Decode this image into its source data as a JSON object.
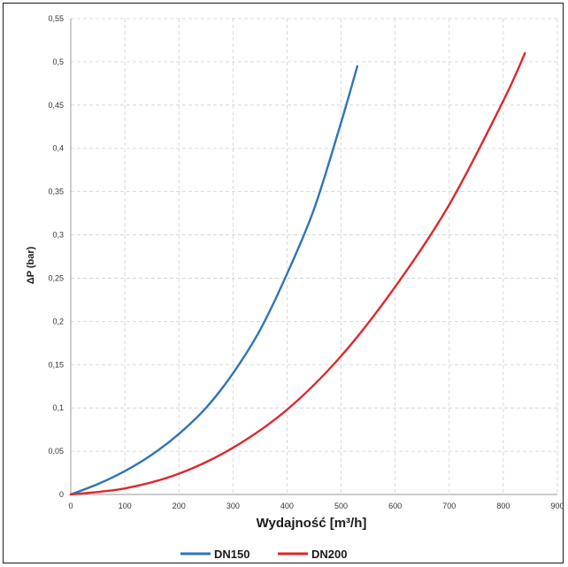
{
  "chart_data": {
    "type": "line",
    "title": "",
    "xlabel": "Wydajność [m³/h]",
    "ylabel": "ΔP (bar)",
    "xlim": [
      0,
      900
    ],
    "ylim": [
      0,
      0.55
    ],
    "x_ticks": [
      "0",
      "100",
      "200",
      "300",
      "400",
      "500",
      "600",
      "700",
      "800",
      "900"
    ],
    "y_ticks": [
      "0",
      "0,05",
      "0,1",
      "0,15",
      "0,2",
      "0,25",
      "0,3",
      "0,35",
      "0,4",
      "0,45",
      "0,5",
      "0,55"
    ],
    "grid": true,
    "legend_position": "bottom",
    "series": [
      {
        "name": "DN150",
        "color": "#2e75b6",
        "x": [
          0,
          50,
          100,
          150,
          200,
          250,
          300,
          350,
          400,
          450,
          500,
          530
        ],
        "y": [
          0,
          0.012,
          0.027,
          0.046,
          0.07,
          0.1,
          0.14,
          0.19,
          0.255,
          0.33,
          0.43,
          0.495
        ]
      },
      {
        "name": "DN200",
        "color": "#e0262b",
        "x": [
          0,
          100,
          200,
          300,
          400,
          500,
          600,
          700,
          800,
          840
        ],
        "y": [
          0,
          0.007,
          0.024,
          0.054,
          0.098,
          0.16,
          0.24,
          0.335,
          0.455,
          0.51
        ]
      }
    ]
  }
}
